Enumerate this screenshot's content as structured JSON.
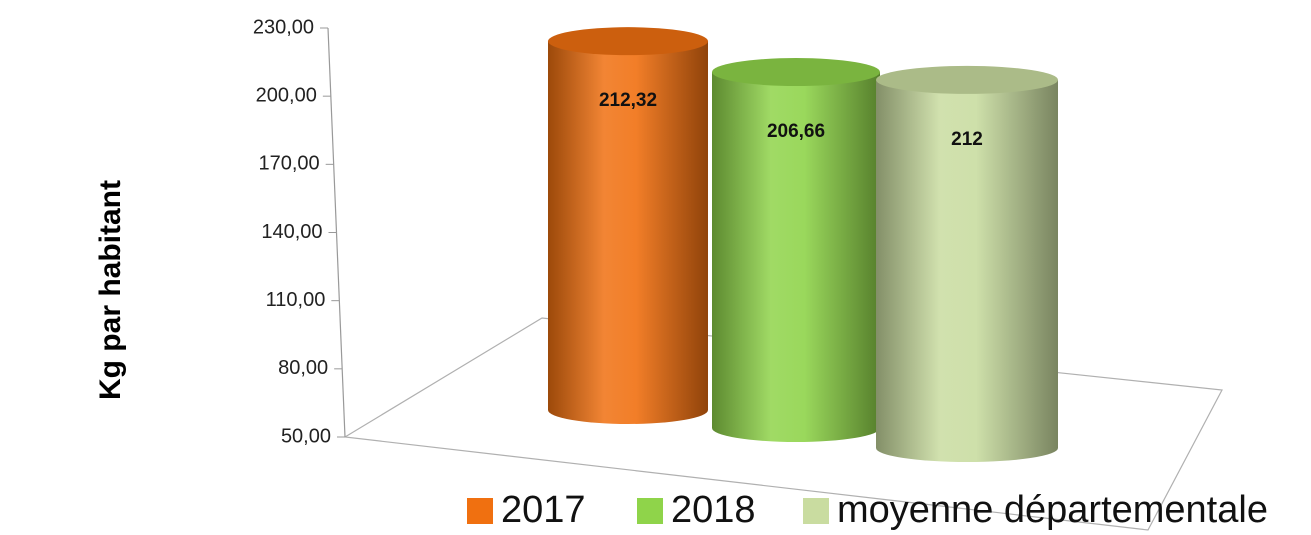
{
  "chart_data": {
    "type": "cylinder",
    "y_label": "Kg par habitant",
    "categories": [
      null
    ],
    "series": [
      {
        "name": "2017",
        "color": "#f07010",
        "values": [
          212.32
        ],
        "value_labels": [
          "212,32"
        ]
      },
      {
        "name": "2018",
        "color": "#8fd44a",
        "values": [
          206.66
        ],
        "value_labels": [
          "206,66"
        ]
      },
      {
        "name": "moyenne départementale",
        "color": "#c9dca0",
        "values": [
          212
        ],
        "value_labels": [
          "212"
        ]
      }
    ],
    "ylim": [
      50,
      230
    ],
    "yticks": [
      {
        "value": 50,
        "label": "50,00"
      },
      {
        "value": 80,
        "label": "80,00"
      },
      {
        "value": 110,
        "label": "110,00"
      },
      {
        "value": 140,
        "label": "140,00"
      },
      {
        "value": 170,
        "label": "170,00"
      },
      {
        "value": 200,
        "label": "200,00"
      },
      {
        "value": 230,
        "label": "230,00"
      }
    ],
    "legend": "bottom"
  }
}
